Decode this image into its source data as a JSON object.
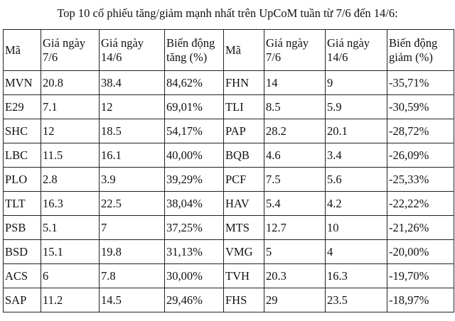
{
  "title": "Top 10 cổ phiếu tăng/giảm mạnh nhất trên UpCoM tuần từ 7/6 đến 14/6:",
  "headers": [
    "Mã",
    "Giá ngày 7/6",
    "Giá ngày 14/6",
    "Biến động tăng (%)",
    "Mã",
    "Giá ngày 7/6",
    "Giá ngày 14/6",
    "Biến động giảm (%)"
  ],
  "rows": [
    [
      "MVN",
      "20.8",
      "38.4",
      "84,62%",
      "FHN",
      "14",
      "9",
      "-35,71%"
    ],
    [
      "E29",
      "7.1",
      "12",
      "69,01%",
      "TLI",
      "8.5",
      "5.9",
      "-30,59%"
    ],
    [
      "SHC",
      "12",
      "18.5",
      "54,17%",
      "PAP",
      "28.2",
      "20.1",
      "-28,72%"
    ],
    [
      "LBC",
      "11.5",
      "16.1",
      "40,00%",
      "BQB",
      "4.6",
      "3.4",
      "-26,09%"
    ],
    [
      "PLO",
      "2.8",
      "3.9",
      "39,29%",
      "PCF",
      "7.5",
      "5.6",
      "-25,33%"
    ],
    [
      "TLT",
      "16.3",
      "22.5",
      "38,04%",
      "HAV",
      "5.4",
      "4.2",
      "-22,22%"
    ],
    [
      "PSB",
      "5.1",
      "7",
      "37,25%",
      "MTS",
      "12.7",
      "10",
      "-21,26%"
    ],
    [
      "BSD",
      "15.1",
      "19.8",
      "31,13%",
      "VMG",
      "5",
      "4",
      "-20,00%"
    ],
    [
      "ACS",
      "6",
      "7.8",
      "30,00%",
      "TVH",
      "20.3",
      "16.3",
      "-19,70%"
    ],
    [
      "SAP",
      "11.2",
      "14.5",
      "29,46%",
      "FHS",
      "29",
      "23.5",
      "-18,97%"
    ]
  ]
}
